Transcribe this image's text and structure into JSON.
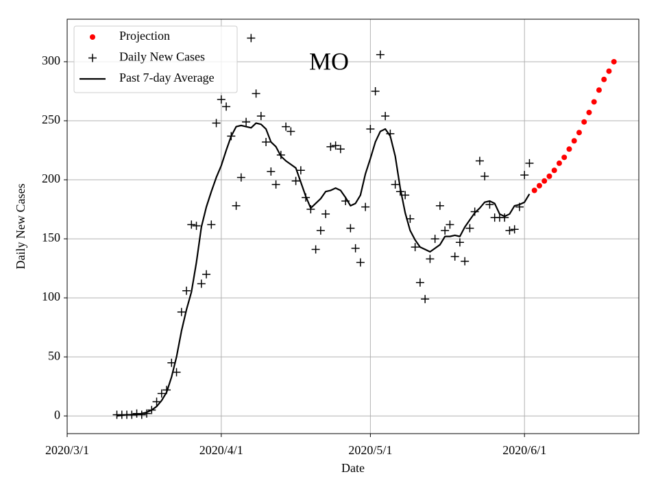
{
  "chart_data": {
    "type": "line",
    "title": "MO",
    "x_label": "Date",
    "y_label": "Daily New Cases",
    "xlim": [
      "2020-03-01",
      "2020-06-24"
    ],
    "ylim": [
      -15,
      336
    ],
    "xticks": [
      {
        "value": "2020-03-01",
        "label": "2020/3/1"
      },
      {
        "value": "2020-04-01",
        "label": "2020/4/1"
      },
      {
        "value": "2020-05-01",
        "label": "2020/5/1"
      },
      {
        "value": "2020-06-01",
        "label": "2020/6/1"
      }
    ],
    "yticks": [
      0,
      50,
      100,
      150,
      200,
      250,
      300
    ],
    "grid": true,
    "legend": "upper left",
    "x": [
      "2020-03-11",
      "2020-03-12",
      "2020-03-13",
      "2020-03-14",
      "2020-03-15",
      "2020-03-16",
      "2020-03-17",
      "2020-03-18",
      "2020-03-19",
      "2020-03-20",
      "2020-03-21",
      "2020-03-22",
      "2020-03-23",
      "2020-03-24",
      "2020-03-25",
      "2020-03-26",
      "2020-03-27",
      "2020-03-28",
      "2020-03-29",
      "2020-03-30",
      "2020-03-31",
      "2020-04-01",
      "2020-04-02",
      "2020-04-03",
      "2020-04-04",
      "2020-04-05",
      "2020-04-06",
      "2020-04-07",
      "2020-04-08",
      "2020-04-09",
      "2020-04-10",
      "2020-04-11",
      "2020-04-12",
      "2020-04-13",
      "2020-04-14",
      "2020-04-15",
      "2020-04-16",
      "2020-04-17",
      "2020-04-18",
      "2020-04-19",
      "2020-04-20",
      "2020-04-21",
      "2020-04-22",
      "2020-04-23",
      "2020-04-24",
      "2020-04-25",
      "2020-04-26",
      "2020-04-27",
      "2020-04-28",
      "2020-04-29",
      "2020-04-30",
      "2020-05-01",
      "2020-05-02",
      "2020-05-03",
      "2020-05-04",
      "2020-05-05",
      "2020-05-06",
      "2020-05-07",
      "2020-05-08",
      "2020-05-09",
      "2020-05-10",
      "2020-05-11",
      "2020-05-12",
      "2020-05-13",
      "2020-05-14",
      "2020-05-15",
      "2020-05-16",
      "2020-05-17",
      "2020-05-18",
      "2020-05-19",
      "2020-05-20",
      "2020-05-21",
      "2020-05-22",
      "2020-05-23",
      "2020-05-24",
      "2020-05-25",
      "2020-05-26",
      "2020-05-27",
      "2020-05-28",
      "2020-05-29",
      "2020-05-30",
      "2020-05-31",
      "2020-06-01",
      "2020-06-02"
    ],
    "series": [
      {
        "name": "Projection",
        "color": "#ff0000",
        "marker": "dot",
        "x": [
          "2020-06-03",
          "2020-06-04",
          "2020-06-05",
          "2020-06-06",
          "2020-06-07",
          "2020-06-08",
          "2020-06-09",
          "2020-06-10",
          "2020-06-11",
          "2020-06-12",
          "2020-06-13",
          "2020-06-14",
          "2020-06-15",
          "2020-06-16",
          "2020-06-17",
          "2020-06-18",
          "2020-06-19"
        ],
        "values": [
          191,
          195,
          199,
          203,
          208,
          214,
          219,
          226,
          233,
          240,
          249,
          257,
          266,
          276,
          285,
          292,
          300
        ]
      },
      {
        "name": "Daily New Cases",
        "color": "#000000",
        "marker": "plus",
        "values": [
          1,
          1,
          1,
          1,
          2,
          1,
          2,
          5,
          12,
          19,
          22,
          45,
          37,
          88,
          106,
          162,
          161,
          112,
          120,
          162,
          248,
          268,
          262,
          237,
          178,
          202,
          249,
          320,
          273,
          254,
          232,
          207,
          196,
          221,
          245,
          241,
          199,
          208,
          185,
          175,
          141,
          157,
          171,
          228,
          229,
          226,
          182,
          159,
          142,
          130,
          177,
          243,
          275,
          306,
          254,
          239,
          196,
          190,
          187,
          167,
          143,
          113,
          99,
          133,
          150,
          178,
          157,
          162,
          135,
          147,
          131,
          159,
          173,
          216,
          203,
          179,
          168,
          168,
          168,
          157,
          158,
          177,
          204,
          214
        ]
      },
      {
        "name": "Past 7-day Average",
        "color": "#000000",
        "marker": "line",
        "values": [
          0,
          0.5,
          1,
          1,
          1,
          2,
          3,
          5,
          8,
          13,
          20,
          33,
          50,
          72,
          90,
          105,
          130,
          160,
          177,
          190,
          202,
          212,
          225,
          237,
          245,
          246,
          245,
          244,
          248,
          247,
          243,
          232,
          228,
          220,
          216,
          213,
          210,
          198,
          186,
          176,
          180,
          184,
          190,
          191,
          193,
          191,
          185,
          178,
          180,
          187,
          205,
          218,
          232,
          241,
          243,
          237,
          220,
          193,
          172,
          157,
          149,
          143,
          141,
          139,
          142,
          145,
          152,
          152,
          153,
          152,
          160,
          166,
          172,
          176,
          181,
          182,
          180,
          171,
          169,
          171,
          178,
          179,
          181,
          188
        ]
      }
    ]
  }
}
